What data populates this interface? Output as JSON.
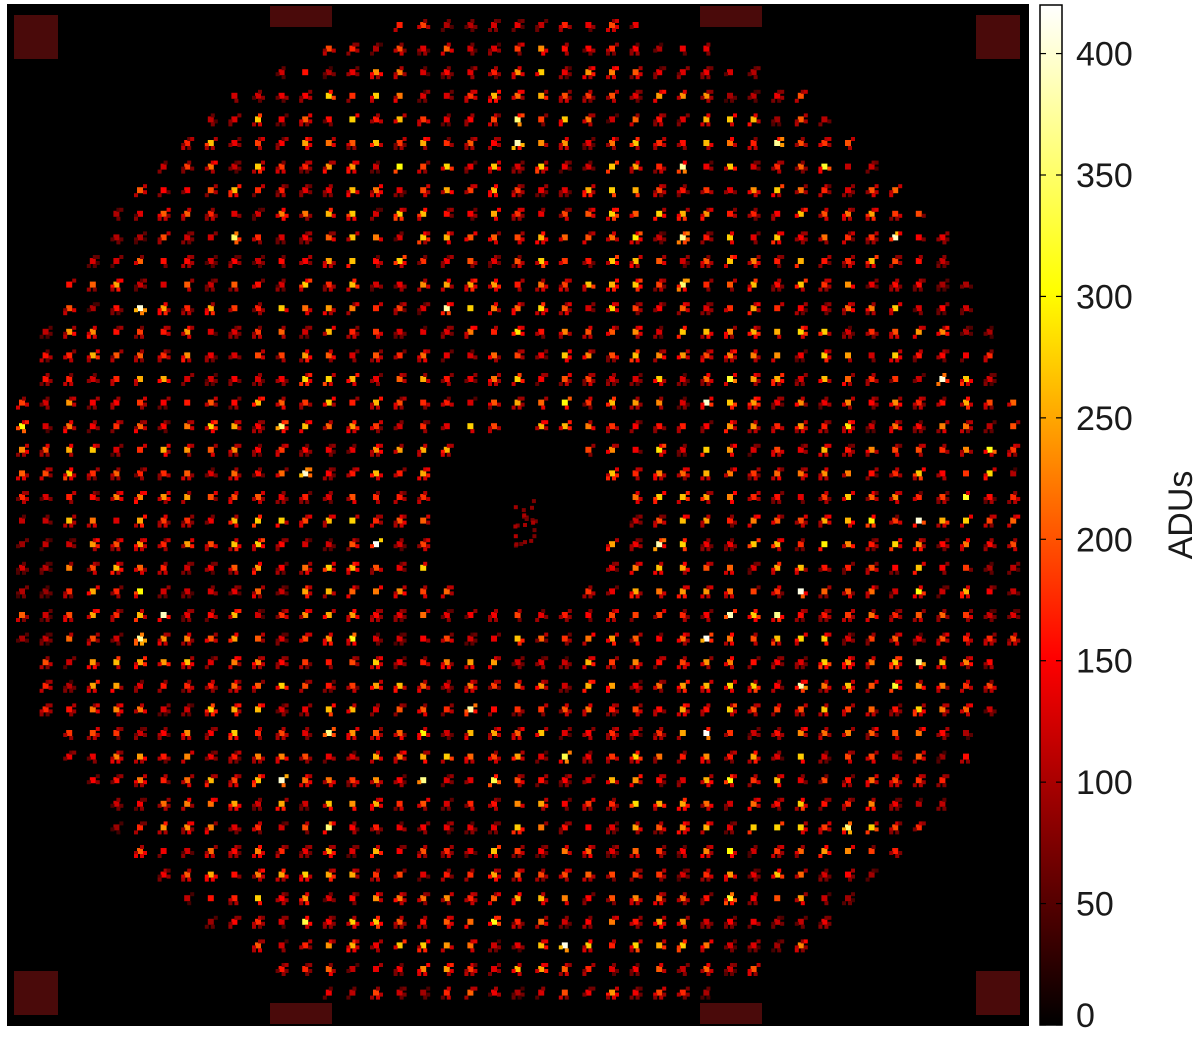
{
  "chart_data": {
    "type": "heatmap",
    "title": "",
    "xlabel": "",
    "ylabel": "",
    "colormap": "hot",
    "colors": {
      "background": "#000000",
      "frame": "#000000",
      "low": "#000000",
      "mid": "#ff0000",
      "high_mid": "#ffcc00",
      "max": "#ffffff"
    },
    "colorbar": {
      "label": "ADUs",
      "ticks": [
        0,
        50,
        100,
        150,
        200,
        250,
        300,
        350,
        400
      ],
      "tick_labels": [
        "0",
        "50",
        "100",
        "150",
        "200",
        "250",
        "300",
        "350",
        "400"
      ],
      "range": [
        0,
        420
      ],
      "orientation": "vertical",
      "position": "right"
    },
    "grid": false,
    "image_description_values": {
      "spot_grid_columns": 44,
      "spot_grid_rows": 42,
      "typical_spot_intensity": [
        120,
        280
      ],
      "peak_intensity": 420,
      "background_intensity": [
        0,
        25
      ],
      "pupil_shape": "circular with central obscuration",
      "fiducial_markers": 8
    }
  }
}
